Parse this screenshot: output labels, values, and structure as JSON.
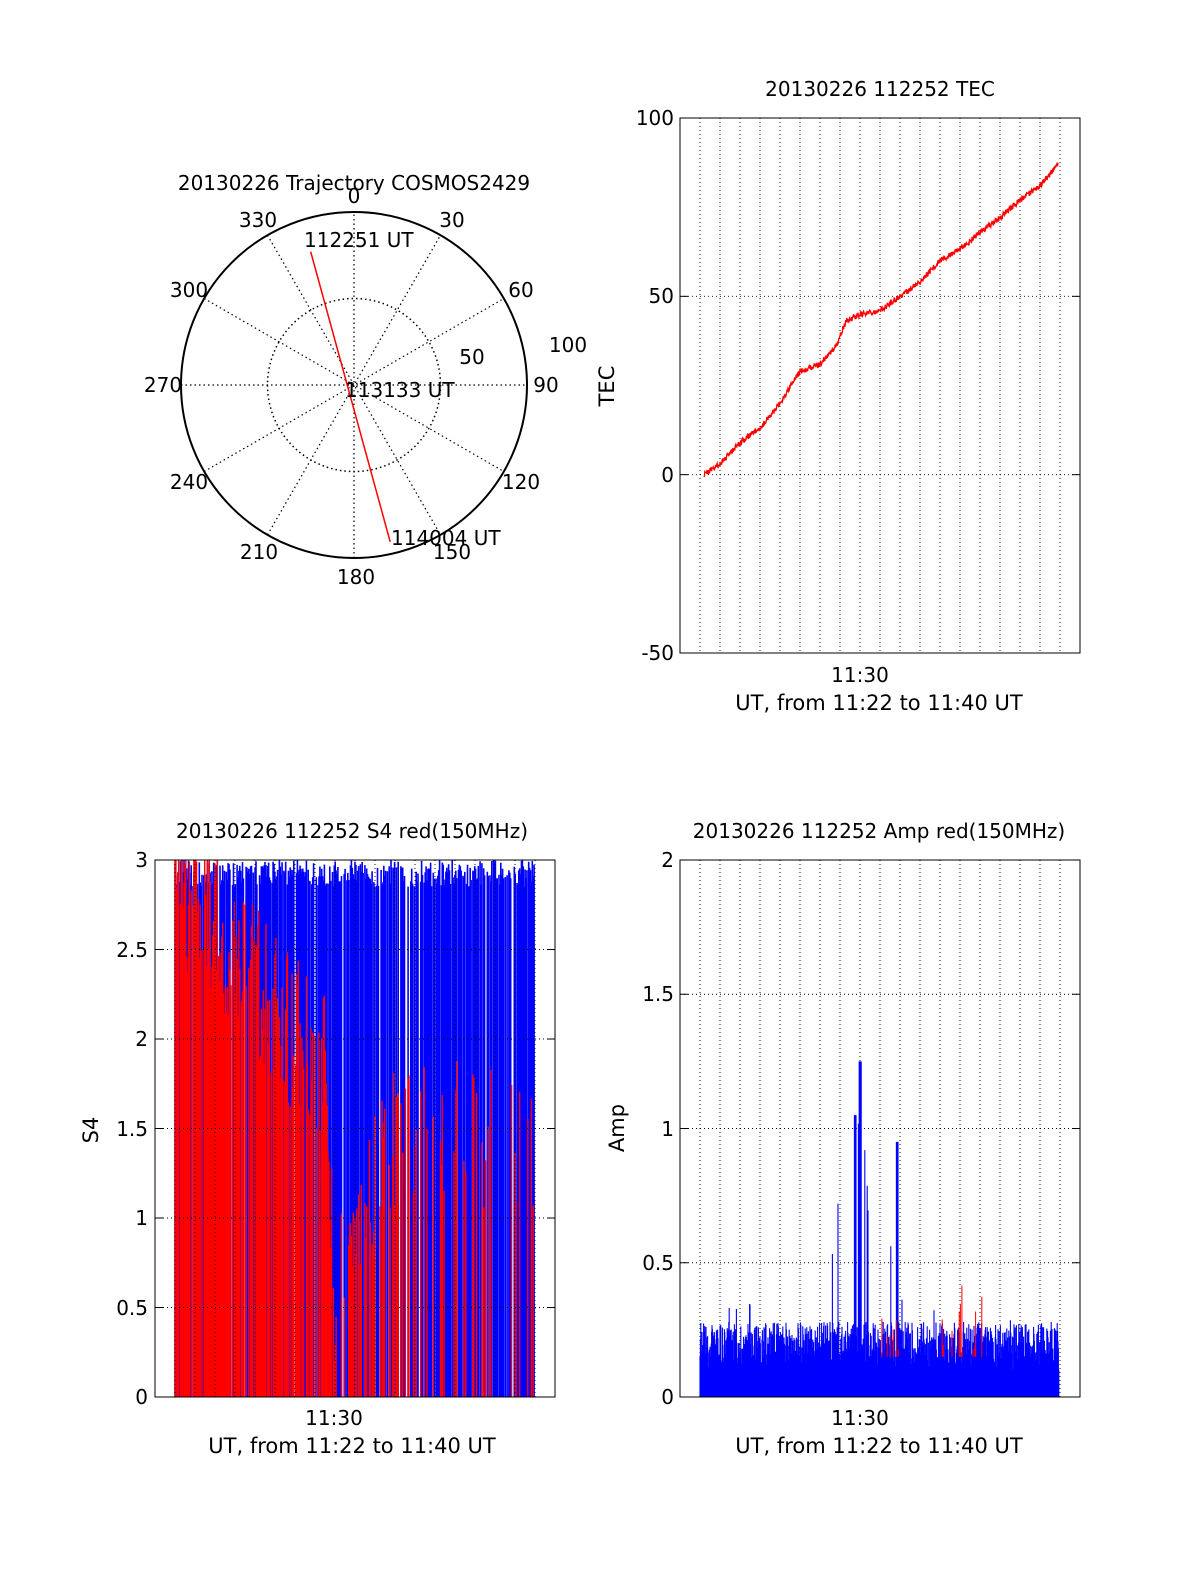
{
  "chart_data": [
    {
      "type": "polar",
      "title": "20130226 Trajectory COSMOS2429",
      "azimuth_labels": [
        "0",
        "30",
        "60",
        "90",
        "120",
        "150",
        "180",
        "210",
        "240",
        "270",
        "300",
        "330"
      ],
      "radial_labels": [
        "50",
        "100"
      ],
      "series": [
        {
          "color": "#ff0000",
          "points": [
            {
              "azimuth": 342,
              "distance": 81
            },
            {
              "azimuth": 167,
              "distance": 93
            }
          ]
        }
      ],
      "annotations": [
        "112251 UT",
        "113133 UT",
        "114004 UT"
      ]
    },
    {
      "type": "line",
      "title": "20130226 112252 TEC",
      "xlabel": "UT, from 11:22 to 11:40 UT",
      "ylabel": "TEC",
      "x_tick_labels": [
        "11:30"
      ],
      "y_ticks": [
        -50,
        0,
        50,
        100
      ],
      "ylim": [
        -50,
        100
      ],
      "grid": true,
      "series": [
        {
          "color": "#ff0000",
          "x_min": [
            1.2,
            2.0,
            3.0,
            4.0,
            5.0,
            6.0,
            7.0,
            7.8,
            8.3,
            9.0,
            10.0,
            11.0,
            12.0,
            13.0,
            14.0,
            15.0,
            16.0,
            17.0,
            18.0,
            18.9
          ],
          "values": [
            0,
            3,
            9,
            13,
            20,
            29,
            31,
            36,
            43,
            45,
            46,
            50,
            54,
            60,
            63,
            68,
            72,
            77,
            81,
            87
          ]
        }
      ]
    },
    {
      "type": "area",
      "title": "20130226 112252 S4 red(150MHz)",
      "xlabel": "UT, from 11:22 to 11:40 UT",
      "ylabel": "S4",
      "x_tick_labels": [
        "11:30"
      ],
      "y_tick_labels": [
        "0",
        "0.5",
        "1",
        "1.5",
        "2",
        "2.5",
        "3"
      ],
      "ylim": [
        0,
        3
      ],
      "grid": true,
      "series": [
        {
          "color": "#0000ff",
          "x_min": [
            1,
            4,
            8,
            12,
            16,
            19
          ],
          "values": [
            3.0,
            3.0,
            3.0,
            3.0,
            3.0,
            3.0
          ]
        },
        {
          "color": "#ff0000",
          "x_min": [
            1,
            4,
            8.5,
            9,
            12,
            16,
            19
          ],
          "values": [
            2.9,
            2.5,
            1.8,
            0.5,
            1.5,
            1.5,
            1.5
          ]
        }
      ]
    },
    {
      "type": "bar",
      "title": "20130226 112252 Amp red(150MHz)",
      "xlabel": "UT, from 11:22 to 11:40 UT",
      "ylabel": "Amp",
      "x_tick_labels": [
        "11:30"
      ],
      "y_tick_labels": [
        "0",
        "0.5",
        "1",
        "1.5",
        "2"
      ],
      "ylim": [
        0,
        2
      ],
      "grid": true,
      "series": [
        {
          "color": "#0000ff",
          "x_min": [
            1,
            3,
            5,
            7,
            8.7,
            9.0,
            10.0,
            10.8,
            12,
            14,
            16,
            18.9
          ],
          "values": [
            0.3,
            0.35,
            0.55,
            0.5,
            1.05,
            1.25,
            0.95,
            0.65,
            0.35,
            0.3,
            0.3,
            0.25
          ]
        },
        {
          "color": "#ff0000",
          "x_min": [
            10.5,
            13.5,
            14.5
          ],
          "values": [
            0.4,
            0.45,
            0.4
          ]
        }
      ]
    }
  ]
}
